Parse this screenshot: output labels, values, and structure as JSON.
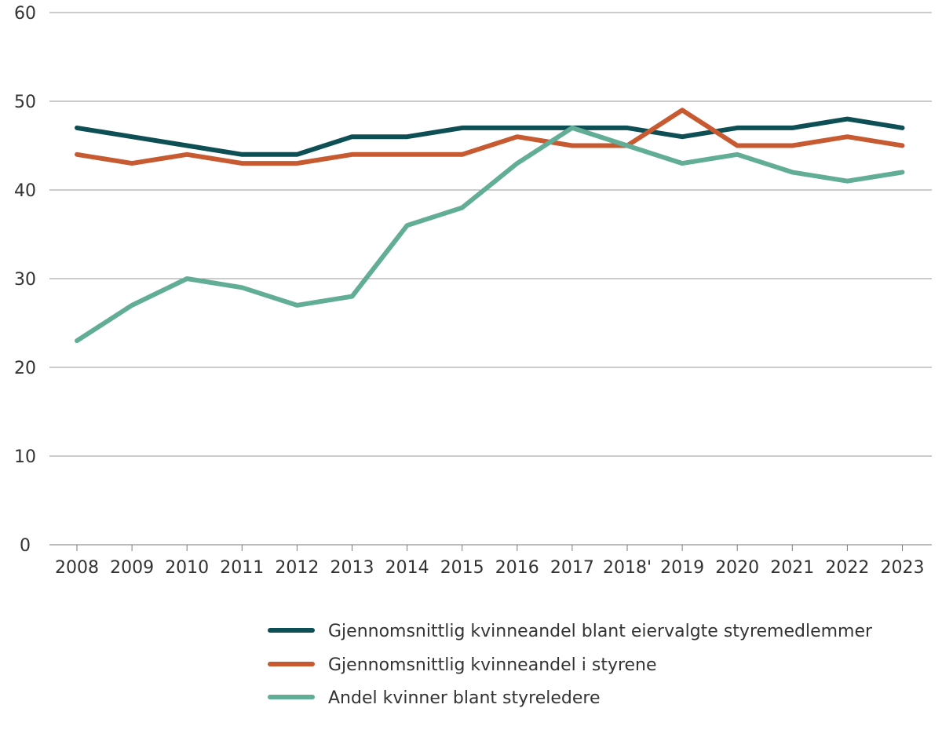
{
  "chart_data": {
    "type": "line",
    "title": "",
    "xlabel": "",
    "ylabel": "",
    "categories": [
      "2008",
      "2009",
      "2010",
      "2011",
      "2012",
      "2013",
      "2014",
      "2015",
      "2016",
      "2017",
      "2018'",
      "2019",
      "2020",
      "2021",
      "2022",
      "2023"
    ],
    "ylim": [
      0,
      60
    ],
    "yticks": [
      "0",
      "10",
      "20",
      "30",
      "40",
      "50",
      "60"
    ],
    "grid": "horizontal",
    "legend": "bottom",
    "series": [
      {
        "name": "Gjennomsnittlig kvinneandel blant eiervalgte styremedlemmer",
        "color": "#0d4f55",
        "values": [
          47,
          46,
          45,
          44,
          44,
          46,
          46,
          47,
          47,
          47,
          47,
          46,
          47,
          47,
          48,
          47
        ]
      },
      {
        "name": "Gjennomsnittlig kvinneandel i styrene",
        "color": "#c85a32",
        "values": [
          44,
          43,
          44,
          43,
          43,
          44,
          44,
          44,
          46,
          45,
          45,
          49,
          45,
          45,
          46,
          45
        ]
      },
      {
        "name": "Andel kvinner blant styreledere",
        "color": "#62ad96",
        "values": [
          23,
          27,
          30,
          29,
          27,
          28,
          36,
          38,
          43,
          47,
          45,
          43,
          44,
          42,
          41,
          42
        ]
      }
    ]
  }
}
